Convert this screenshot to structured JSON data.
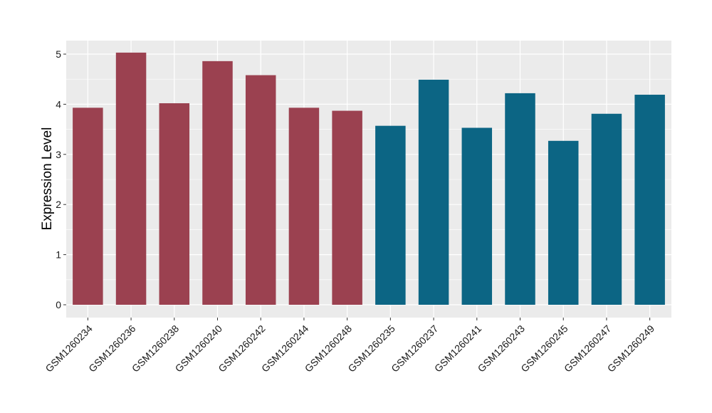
{
  "chart_data": {
    "type": "bar",
    "title": "",
    "xlabel": "",
    "ylabel": "Expression Level",
    "ylim": [
      0,
      5.25
    ],
    "yticks": [
      0,
      1,
      2,
      3,
      4,
      5
    ],
    "grid": true,
    "background": "#EBEBEB",
    "gridline_color": "#FFFFFF",
    "categories": [
      "GSM1260234",
      "GSM1260236",
      "GSM1260238",
      "GSM1260240",
      "GSM1260242",
      "GSM1260244",
      "GSM1260248",
      "GSM1260235",
      "GSM1260237",
      "GSM1260241",
      "GSM1260243",
      "GSM1260245",
      "GSM1260247",
      "GSM1260249"
    ],
    "values": [
      3.93,
      5.03,
      4.02,
      4.86,
      4.58,
      3.93,
      3.87,
      3.57,
      4.49,
      3.53,
      4.22,
      3.27,
      3.81,
      4.19
    ],
    "group_colors": [
      "#9B4150",
      "#9B4150",
      "#9B4150",
      "#9B4150",
      "#9B4150",
      "#9B4150",
      "#9B4150",
      "#0C6584",
      "#0C6584",
      "#0C6584",
      "#0C6584",
      "#0C6584",
      "#0C6584",
      "#0C6584"
    ]
  }
}
